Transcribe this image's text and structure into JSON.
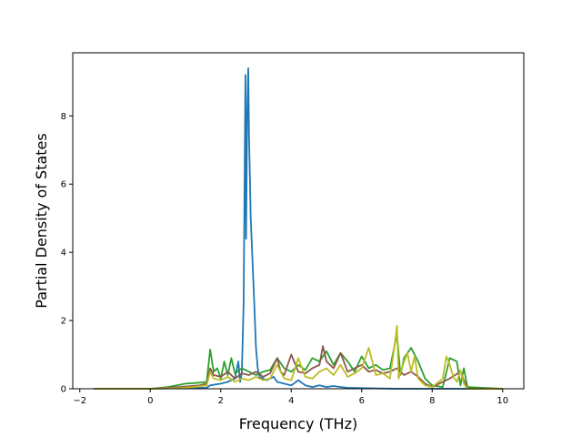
{
  "chart_data": {
    "type": "line",
    "title": "",
    "xlabel": "Frequency (THz)",
    "ylabel": "Partial Density of States",
    "xlim": [
      -2.2,
      10.6
    ],
    "ylim": [
      0,
      9.85
    ],
    "xticks": [
      -2,
      0,
      2,
      4,
      6,
      8,
      10
    ],
    "yticks": [
      0,
      2,
      4,
      6,
      8
    ],
    "grid": false,
    "legend": "none",
    "series": [
      {
        "color": "#1f77b4",
        "x": [
          -1.6,
          0.0,
          1.0,
          1.6,
          1.7,
          2.0,
          2.2,
          2.4,
          2.5,
          2.55,
          2.6,
          2.65,
          2.7,
          2.72,
          2.75,
          2.78,
          2.8,
          2.85,
          2.9,
          2.95,
          3.0,
          3.05,
          3.1,
          3.2,
          3.3,
          3.4,
          3.5,
          3.6,
          3.8,
          4.0,
          4.2,
          4.4,
          4.6,
          4.8,
          5.0,
          5.2,
          5.4,
          5.6,
          6.0,
          7.0,
          8.0,
          10.0
        ],
        "y": [
          0.0,
          0.0,
          0.02,
          0.03,
          0.1,
          0.15,
          0.2,
          0.3,
          0.8,
          0.2,
          0.5,
          2.5,
          9.2,
          4.4,
          8.0,
          9.4,
          7.5,
          5.0,
          3.8,
          2.5,
          1.2,
          0.6,
          0.35,
          0.3,
          0.25,
          0.3,
          0.35,
          0.2,
          0.15,
          0.1,
          0.25,
          0.1,
          0.05,
          0.1,
          0.05,
          0.08,
          0.05,
          0.03,
          0.02,
          0.0,
          0.0,
          0.0
        ]
      },
      {
        "color": "#2ca02c",
        "x": [
          -1.6,
          0.0,
          0.5,
          1.0,
          1.4,
          1.6,
          1.7,
          1.8,
          1.9,
          2.0,
          2.1,
          2.2,
          2.3,
          2.4,
          2.6,
          2.8,
          3.0,
          3.2,
          3.4,
          3.6,
          3.8,
          4.0,
          4.2,
          4.4,
          4.6,
          4.8,
          5.0,
          5.2,
          5.4,
          5.6,
          5.8,
          6.0,
          6.2,
          6.4,
          6.6,
          6.8,
          7.0,
          7.1,
          7.2,
          7.4,
          7.6,
          7.8,
          8.0,
          8.3,
          8.5,
          8.7,
          8.8,
          8.9,
          9.0,
          10.0
        ],
        "y": [
          0.0,
          0.0,
          0.05,
          0.15,
          0.18,
          0.2,
          1.15,
          0.5,
          0.6,
          0.3,
          0.8,
          0.4,
          0.9,
          0.45,
          0.6,
          0.5,
          0.4,
          0.5,
          0.55,
          0.9,
          0.6,
          0.5,
          0.7,
          0.55,
          0.9,
          0.8,
          1.1,
          0.7,
          1.05,
          0.8,
          0.5,
          0.95,
          0.6,
          0.7,
          0.55,
          0.6,
          1.6,
          0.4,
          0.9,
          1.2,
          0.8,
          0.3,
          0.1,
          0.05,
          0.9,
          0.8,
          0.1,
          0.6,
          0.05,
          0.0
        ]
      },
      {
        "color": "#8c564b",
        "x": [
          -1.6,
          0.0,
          0.8,
          1.4,
          1.6,
          1.7,
          1.8,
          2.0,
          2.2,
          2.4,
          2.6,
          2.8,
          3.0,
          3.2,
          3.4,
          3.6,
          3.7,
          3.8,
          4.0,
          4.2,
          4.4,
          4.6,
          4.8,
          4.9,
          5.0,
          5.2,
          5.4,
          5.6,
          5.8,
          6.0,
          6.2,
          6.4,
          6.6,
          6.8,
          7.0,
          7.2,
          7.4,
          7.6,
          7.8,
          8.0,
          8.5,
          8.8,
          9.0,
          10.0
        ],
        "y": [
          0.0,
          0.0,
          0.05,
          0.1,
          0.15,
          0.6,
          0.4,
          0.35,
          0.5,
          0.3,
          0.45,
          0.4,
          0.5,
          0.35,
          0.45,
          0.9,
          0.5,
          0.4,
          1.0,
          0.5,
          0.45,
          0.6,
          0.7,
          1.25,
          0.8,
          0.6,
          1.05,
          0.5,
          0.6,
          0.7,
          0.5,
          0.55,
          0.45,
          0.5,
          0.6,
          0.4,
          0.5,
          0.35,
          0.15,
          0.05,
          0.3,
          0.5,
          0.0,
          0.0
        ]
      },
      {
        "color": "#bcbd22",
        "x": [
          -1.6,
          0.0,
          0.8,
          1.2,
          1.6,
          1.7,
          1.8,
          2.0,
          2.2,
          2.4,
          2.6,
          2.8,
          3.0,
          3.2,
          3.4,
          3.6,
          3.8,
          4.0,
          4.2,
          4.4,
          4.6,
          4.8,
          5.0,
          5.2,
          5.4,
          5.6,
          5.8,
          6.0,
          6.2,
          6.4,
          6.6,
          6.8,
          6.95,
          7.0,
          7.05,
          7.2,
          7.3,
          7.4,
          7.5,
          7.6,
          7.8,
          8.0,
          8.3,
          8.4,
          8.5,
          8.6,
          8.7,
          8.8,
          8.9,
          9.0,
          10.0
        ],
        "y": [
          0.0,
          0.0,
          0.02,
          0.05,
          0.1,
          0.5,
          0.3,
          0.25,
          0.35,
          0.2,
          0.3,
          0.25,
          0.35,
          0.25,
          0.3,
          0.7,
          0.3,
          0.25,
          0.9,
          0.35,
          0.3,
          0.5,
          0.6,
          0.4,
          0.7,
          0.35,
          0.45,
          0.6,
          1.2,
          0.4,
          0.45,
          0.3,
          1.4,
          1.85,
          0.3,
          0.8,
          1.05,
          0.5,
          0.95,
          0.3,
          0.1,
          0.05,
          0.3,
          0.95,
          0.7,
          0.35,
          0.2,
          0.55,
          0.15,
          0.0,
          0.0
        ]
      }
    ]
  }
}
